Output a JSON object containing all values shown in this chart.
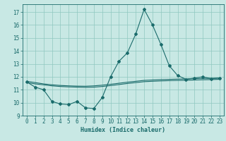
{
  "xlabel": "Humidex (Indice chaleur)",
  "xlim": [
    -0.5,
    23.5
  ],
  "ylim": [
    9.0,
    17.6
  ],
  "yticks": [
    9,
    10,
    11,
    12,
    13,
    14,
    15,
    16,
    17
  ],
  "xticks": [
    0,
    1,
    2,
    3,
    4,
    5,
    6,
    7,
    8,
    9,
    10,
    11,
    12,
    13,
    14,
    15,
    16,
    17,
    18,
    19,
    20,
    21,
    22,
    23
  ],
  "background_color": "#c8e8e4",
  "line_color": "#1a6b6b",
  "grid_color": "#8fc8c0",
  "line1_x": [
    0,
    1,
    2,
    3,
    4,
    5,
    6,
    7,
    8,
    9,
    10,
    11,
    12,
    13,
    14,
    15,
    16,
    17,
    18,
    19,
    20,
    21,
    22,
    23
  ],
  "line1_y": [
    11.6,
    11.2,
    11.0,
    10.1,
    9.9,
    9.85,
    10.1,
    9.6,
    9.55,
    10.4,
    12.0,
    13.2,
    13.85,
    15.3,
    17.2,
    16.0,
    14.5,
    12.85,
    12.1,
    11.8,
    11.9,
    12.0,
    11.85,
    11.9
  ],
  "line2_x": [
    0,
    1,
    2,
    3,
    4,
    5,
    6,
    7,
    8,
    9,
    10,
    11,
    12,
    13,
    14,
    15,
    16,
    17,
    18,
    19,
    20,
    21,
    22,
    23
  ],
  "line2_y": [
    11.65,
    11.55,
    11.45,
    11.38,
    11.33,
    11.3,
    11.28,
    11.27,
    11.3,
    11.35,
    11.42,
    11.5,
    11.58,
    11.65,
    11.72,
    11.75,
    11.78,
    11.8,
    11.82,
    11.83,
    11.85,
    11.87,
    11.88,
    11.9
  ],
  "line3_x": [
    0,
    1,
    2,
    3,
    4,
    5,
    6,
    7,
    8,
    9,
    10,
    11,
    12,
    13,
    14,
    15,
    16,
    17,
    18,
    19,
    20,
    21,
    22,
    23
  ],
  "line3_y": [
    11.55,
    11.45,
    11.38,
    11.3,
    11.25,
    11.22,
    11.2,
    11.18,
    11.2,
    11.25,
    11.32,
    11.4,
    11.48,
    11.55,
    11.62,
    11.65,
    11.68,
    11.7,
    11.72,
    11.73,
    11.75,
    11.77,
    11.78,
    11.8
  ]
}
